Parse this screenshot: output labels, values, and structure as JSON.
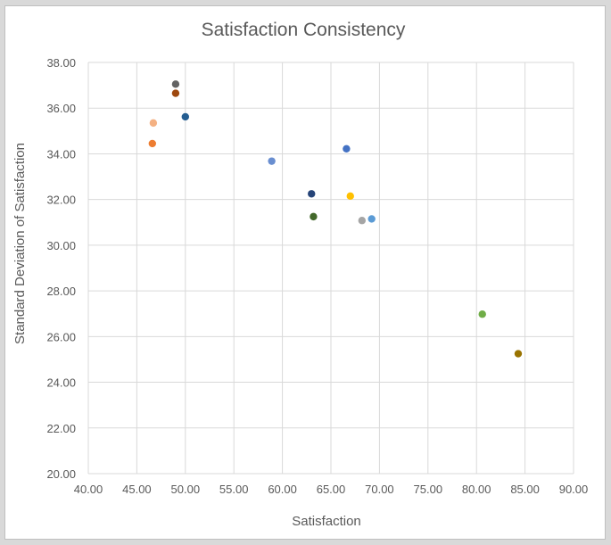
{
  "chart_data": {
    "type": "scatter",
    "title": "Satisfaction Consistency",
    "xlabel": "Satisfaction",
    "ylabel": "Standard Deviation of Satisfaction",
    "xlim": [
      40,
      90
    ],
    "ylim": [
      20,
      38
    ],
    "xticks": [
      40,
      45,
      50,
      55,
      60,
      65,
      70,
      75,
      80,
      85,
      90
    ],
    "yticks": [
      20,
      22,
      24,
      26,
      28,
      30,
      32,
      34,
      36,
      38
    ],
    "tick_format": "2 decimals",
    "grid": true,
    "legend": "none",
    "points": [
      {
        "x": 49.0,
        "y": 37.05,
        "color": "#636363"
      },
      {
        "x": 49.0,
        "y": 36.65,
        "color": "#9e480e"
      },
      {
        "x": 46.7,
        "y": 35.35,
        "color": "#f4b183"
      },
      {
        "x": 50.0,
        "y": 35.62,
        "color": "#255e91"
      },
      {
        "x": 46.6,
        "y": 34.45,
        "color": "#ed7d31"
      },
      {
        "x": 66.6,
        "y": 34.22,
        "color": "#4472c4"
      },
      {
        "x": 58.9,
        "y": 33.68,
        "color": "#698ed0"
      },
      {
        "x": 63.0,
        "y": 32.25,
        "color": "#264478"
      },
      {
        "x": 67.0,
        "y": 32.15,
        "color": "#ffc000"
      },
      {
        "x": 63.2,
        "y": 31.25,
        "color": "#43682b"
      },
      {
        "x": 68.2,
        "y": 31.08,
        "color": "#a5a5a5"
      },
      {
        "x": 69.2,
        "y": 31.15,
        "color": "#5b9bd5"
      },
      {
        "x": 80.6,
        "y": 26.98,
        "color": "#70ad47"
      },
      {
        "x": 84.3,
        "y": 25.25,
        "color": "#997300"
      }
    ]
  }
}
